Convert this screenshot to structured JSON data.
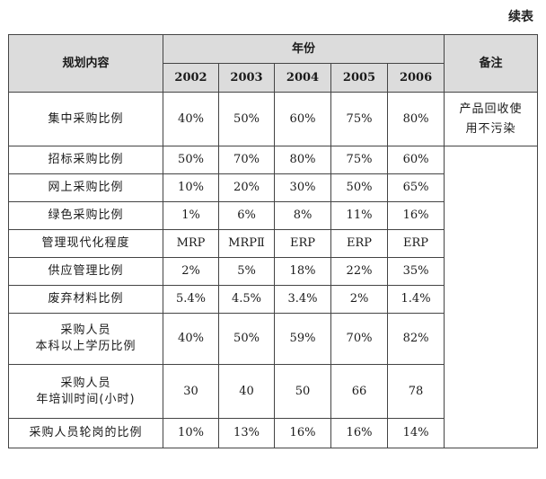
{
  "caption": "续表",
  "header": {
    "content_label": "规划内容",
    "year_group_label": "年份",
    "years": [
      "2002",
      "2003",
      "2004",
      "2005",
      "2006"
    ],
    "note_label": "备注"
  },
  "rows": [
    {
      "label_lines": [
        "集中采购比例"
      ],
      "values": [
        "40%",
        "50%",
        "60%",
        "75%",
        "80%"
      ]
    },
    {
      "label_lines": [
        "招标采购比例"
      ],
      "values": [
        "50%",
        "70%",
        "80%",
        "75%",
        "60%"
      ]
    },
    {
      "label_lines": [
        "网上采购比例"
      ],
      "values": [
        "10%",
        "20%",
        "30%",
        "50%",
        "65%"
      ]
    },
    {
      "label_lines": [
        "绿色采购比例"
      ],
      "values": [
        "1%",
        "6%",
        "8%",
        "11%",
        "16%"
      ]
    },
    {
      "label_lines": [
        "管理现代化程度"
      ],
      "values": [
        "MRP",
        "MRPⅡ",
        "ERP",
        "ERP",
        "ERP"
      ]
    },
    {
      "label_lines": [
        "供应管理比例"
      ],
      "values": [
        "2%",
        "5%",
        "18%",
        "22%",
        "35%"
      ]
    },
    {
      "label_lines": [
        "废弃材料比例"
      ],
      "values": [
        "5.4%",
        "4.5%",
        "3.4%",
        "2%",
        "1.4%"
      ]
    },
    {
      "label_lines": [
        "采购人员",
        "本科以上学历比例"
      ],
      "values": [
        "40%",
        "50%",
        "59%",
        "70%",
        "82%"
      ]
    },
    {
      "label_lines": [
        "采购人员",
        "年培训时间(小时)"
      ],
      "values": [
        "30",
        "40",
        "50",
        "66",
        "78"
      ]
    },
    {
      "label_lines": [
        "采购人员轮岗的比例"
      ],
      "values": [
        "10%",
        "13%",
        "16%",
        "16%",
        "14%"
      ]
    }
  ],
  "note_lines": [
    "产品回收使",
    "用不污染"
  ]
}
